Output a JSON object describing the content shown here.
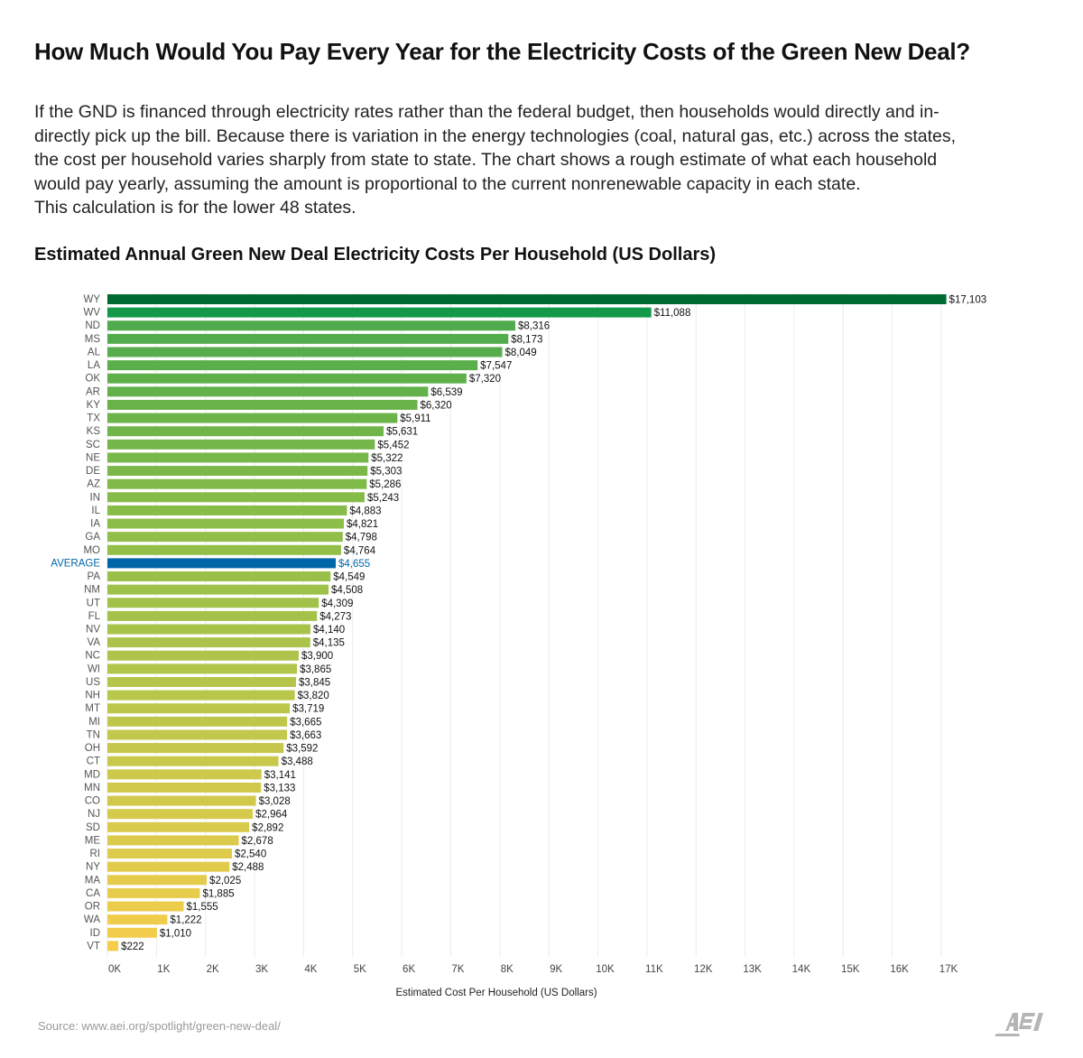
{
  "title": "How Much Would You Pay Every Year for the Electricity Costs of the Green New Deal?",
  "description_lines": [
    "If the GND is financed through electricity rates rather than the federal budget, then households would directly and in-",
    "directly pick up the bill. Because there is variation in the energy technologies (coal, natural gas, etc.) across the states,",
    "the cost per household varies sharply from state to state. The chart shows a rough estimate of what each household",
    "would pay yearly, assuming the amount is proportional to the current nonrenewable capacity in each state.",
    "This calculation is for the lower 48 states."
  ],
  "source": "Source: www.aei.org/spotlight/green-new-deal/",
  "logo_text": "AEI",
  "colors": {
    "highlight": "#0066aa",
    "top": "#006b30",
    "second": "#12994a",
    "gradient": [
      "#4fab4c",
      "#8fbe48",
      "#c3c84b",
      "#f5cd4b"
    ],
    "grid": "#ececec"
  },
  "chart_data": {
    "type": "bar",
    "orientation": "horizontal",
    "title": "Estimated Annual Green New Deal Electricity Costs Per Household (US Dollars)",
    "xlabel": "Estimated Cost Per Household (US Dollars)",
    "ylabel": "",
    "xlim": [
      0,
      17500
    ],
    "grid": true,
    "xticks": [
      0,
      1000,
      2000,
      3000,
      4000,
      5000,
      6000,
      7000,
      8000,
      9000,
      10000,
      11000,
      12000,
      13000,
      14000,
      15000,
      16000,
      17000
    ],
    "xtick_labels": [
      "0K",
      "1K",
      "2K",
      "3K",
      "4K",
      "5K",
      "6K",
      "7K",
      "8K",
      "9K",
      "10K",
      "11K",
      "12K",
      "13K",
      "14K",
      "15K",
      "16K",
      "17K"
    ],
    "highlight_category": "AVERAGE",
    "categories": [
      "WY",
      "WV",
      "ND",
      "MS",
      "AL",
      "LA",
      "OK",
      "AR",
      "KY",
      "TX",
      "KS",
      "SC",
      "NE",
      "DE",
      "AZ",
      "IN",
      "IL",
      "IA",
      "GA",
      "MO",
      "AVERAGE",
      "PA",
      "NM",
      "UT",
      "FL",
      "NV",
      "VA",
      "NC",
      "WI",
      "US",
      "NH",
      "MT",
      "MI",
      "TN",
      "OH",
      "CT",
      "MD",
      "MN",
      "CO",
      "NJ",
      "SD",
      "ME",
      "RI",
      "NY",
      "MA",
      "CA",
      "OR",
      "WA",
      "ID",
      "VT"
    ],
    "values": [
      17103,
      11088,
      8316,
      8173,
      8049,
      7547,
      7320,
      6539,
      6320,
      5911,
      5631,
      5452,
      5322,
      5303,
      5286,
      5243,
      4883,
      4821,
      4798,
      4764,
      4655,
      4549,
      4508,
      4309,
      4273,
      4140,
      4135,
      3900,
      3865,
      3845,
      3820,
      3719,
      3665,
      3663,
      3592,
      3488,
      3141,
      3133,
      3028,
      2964,
      2892,
      2678,
      2540,
      2488,
      2025,
      1885,
      1555,
      1222,
      1010,
      222
    ],
    "value_labels": [
      "$17,103",
      "$11,088",
      "$8,316",
      "$8,173",
      "$8,049",
      "$7,547",
      "$7,320",
      "$6,539",
      "$6,320",
      "$5,911",
      "$5,631",
      "$5,452",
      "$5,322",
      "$5,303",
      "$5,286",
      "$5,243",
      "$4,883",
      "$4,821",
      "$4,798",
      "$4,764",
      "$4,655",
      "$4,549",
      "$4,508",
      "$4,309",
      "$4,273",
      "$4,140",
      "$4,135",
      "$3,900",
      "$3,865",
      "$3,845",
      "$3,820",
      "$3,719",
      "$3,665",
      "$3,663",
      "$3,592",
      "$3,488",
      "$3,141",
      "$3,133",
      "$3,028",
      "$2,964",
      "$2,892",
      "$2,678",
      "$2,540",
      "$2,488",
      "$2,025",
      "$1,885",
      "$1,555",
      "$1,222",
      "$1,010",
      "$222"
    ]
  }
}
